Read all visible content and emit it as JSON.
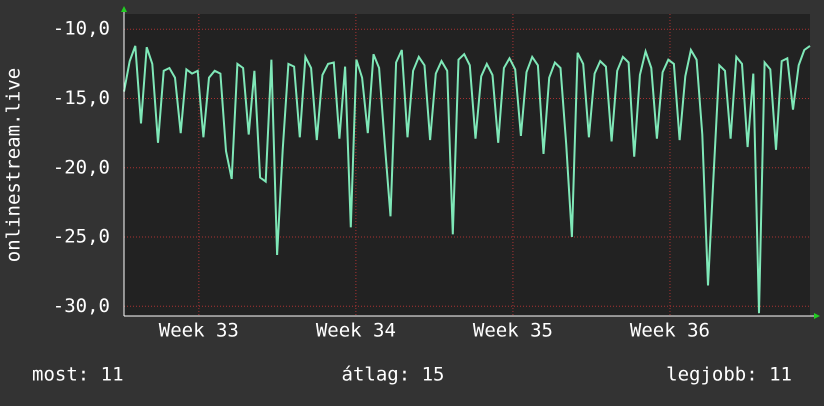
{
  "chart_data": {
    "type": "line",
    "y_label": "onlinestream.live",
    "series": [
      {
        "name": "onlinestream.live",
        "color": "#7fe8b8",
        "values": [
          -14.5,
          -12.3,
          -11.2,
          -16.8,
          -11.3,
          -12.5,
          -18.2,
          -13,
          -12.8,
          -13.5,
          -17.5,
          -12.9,
          -13.2,
          -13,
          -17.8,
          -13.5,
          -13,
          -13.2,
          -18.8,
          -20.8,
          -12.5,
          -12.8,
          -17.6,
          -13,
          -20.7,
          -21,
          -12.2,
          -26.3,
          -18.7,
          -12.5,
          -12.7,
          -17.8,
          -12,
          -12.8,
          -18,
          -13.3,
          -12.5,
          -12.4,
          -17.9,
          -12.7,
          -24.3,
          -12.2,
          -13.5,
          -17.5,
          -11.8,
          -12.8,
          -18.3,
          -23.5,
          -12.4,
          -11.5,
          -17.8,
          -13,
          -12,
          -12.6,
          -18,
          -13.2,
          -12.3,
          -13,
          -24.8,
          -12.2,
          -11.8,
          -12.6,
          -17.9,
          -13.4,
          -12.5,
          -13.3,
          -18.2,
          -12.8,
          -12.1,
          -12.9,
          -17.7,
          -13.1,
          -12,
          -12.6,
          -19,
          -13.5,
          -12.4,
          -12.8,
          -18.3,
          -25,
          -11.7,
          -12.5,
          -17.8,
          -13.2,
          -12.3,
          -12.7,
          -18.1,
          -13,
          -12,
          -12.4,
          -19.2,
          -13.3,
          -11.6,
          -12.8,
          -17.9,
          -13.1,
          -12.2,
          -12.5,
          -18,
          -13.4,
          -11.5,
          -12.2,
          -17.6,
          -28.5,
          -20.5,
          -12.6,
          -13,
          -17.9,
          -12,
          -12.5,
          -18.5,
          -13.2,
          -30.5,
          -12.4,
          -12.9,
          -18.7,
          -12.3,
          -12.1,
          -15.8,
          -12.6,
          -11.5,
          -11.2
        ]
      }
    ],
    "xlim": [
      0,
      121
    ],
    "xticks": [
      {
        "value": 13.2,
        "label": "Week 33"
      },
      {
        "value": 40.9,
        "label": "Week 34"
      },
      {
        "value": 68.6,
        "label": "Week 35"
      },
      {
        "value": 96.3,
        "label": "Week 36"
      }
    ],
    "ylim": [
      -30.7,
      -8.9
    ],
    "yticks": [
      {
        "value": -30,
        "label": "-30,0"
      },
      {
        "value": -25,
        "label": "-25,0"
      },
      {
        "value": -20,
        "label": "-20,0"
      },
      {
        "value": -15,
        "label": "-15,0"
      },
      {
        "value": -10,
        "label": "-10,0"
      }
    ],
    "grid": true,
    "footer": {
      "current": "most: 11",
      "average": "átlag: 15",
      "best": "legjobb: 11"
    }
  }
}
